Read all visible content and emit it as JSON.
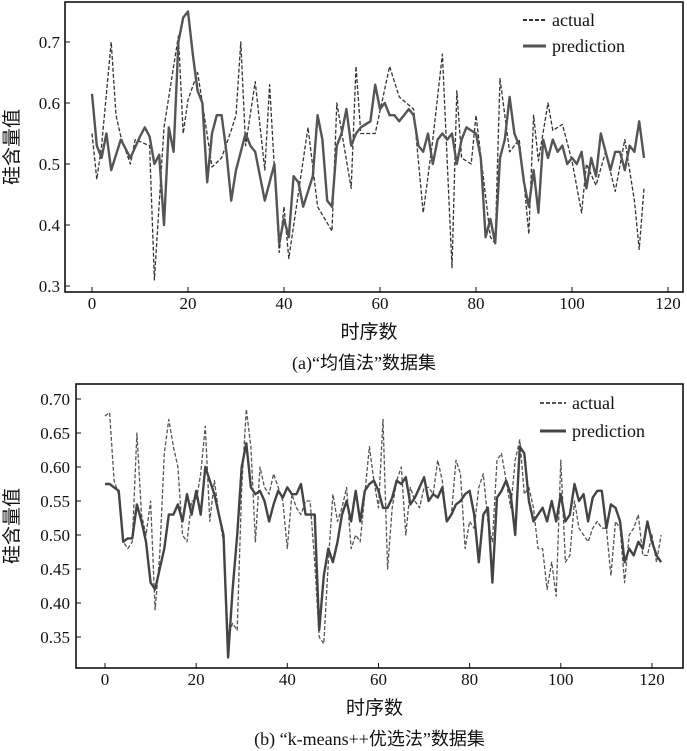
{
  "chart_data": [
    {
      "type": "line",
      "caption": "(a)“均值法”数据集",
      "xlabel": "时序数",
      "ylabel": "硅含量值",
      "xlim": [
        -5,
        125
      ],
      "ylim": [
        0.29,
        0.77
      ],
      "xticks": [
        0,
        20,
        40,
        60,
        80,
        100,
        120
      ],
      "yticks": [
        0.3,
        0.4,
        0.5,
        0.6,
        0.7
      ],
      "ytick_labels": [
        "0.3",
        "0.4",
        "0.5",
        "0.6",
        "0.7"
      ],
      "grid": false,
      "legend": "top-right",
      "series": [
        {
          "name": "actual",
          "style": "dashed",
          "color": "#333333",
          "points": [
            [
              0,
              0.55
            ],
            [
              1,
              0.475
            ],
            [
              2,
              0.53
            ],
            [
              4,
              0.7
            ],
            [
              5,
              0.58
            ],
            [
              6,
              0.545
            ],
            [
              8,
              0.5
            ],
            [
              9,
              0.54
            ],
            [
              12,
              0.53
            ],
            [
              13,
              0.31
            ],
            [
              15,
              0.56
            ],
            [
              18,
              0.71
            ],
            [
              19,
              0.55
            ],
            [
              20,
              0.605
            ],
            [
              22,
              0.65
            ],
            [
              23,
              0.6
            ],
            [
              25,
              0.495
            ],
            [
              27,
              0.51
            ],
            [
              29,
              0.555
            ],
            [
              30,
              0.58
            ],
            [
              31,
              0.7
            ],
            [
              32,
              0.53
            ],
            [
              34,
              0.635
            ],
            [
              36,
              0.49
            ],
            [
              37,
              0.63
            ],
            [
              39,
              0.355
            ],
            [
              40,
              0.43
            ],
            [
              41,
              0.345
            ],
            [
              45,
              0.56
            ],
            [
              47,
              0.43
            ],
            [
              50,
              0.39
            ],
            [
              51,
              0.6
            ],
            [
              54,
              0.46
            ],
            [
              55,
              0.66
            ],
            [
              56,
              0.55
            ],
            [
              59,
              0.55
            ],
            [
              62,
              0.66
            ],
            [
              64,
              0.61
            ],
            [
              67,
              0.59
            ],
            [
              69,
              0.42
            ],
            [
              71,
              0.54
            ],
            [
              73,
              0.68
            ],
            [
              75,
              0.33
            ],
            [
              76,
              0.62
            ],
            [
              77,
              0.51
            ],
            [
              79,
              0.5
            ],
            [
              80,
              0.58
            ],
            [
              83,
              0.38
            ],
            [
              84,
              0.37
            ],
            [
              85,
              0.64
            ],
            [
              87,
              0.52
            ],
            [
              89,
              0.54
            ],
            [
              90,
              0.47
            ],
            [
              91,
              0.385
            ],
            [
              92,
              0.58
            ],
            [
              93,
              0.505
            ],
            [
              95,
              0.6
            ],
            [
              96,
              0.555
            ],
            [
              98,
              0.565
            ],
            [
              100,
              0.505
            ],
            [
              102,
              0.42
            ],
            [
              103,
              0.5
            ],
            [
              105,
              0.465
            ],
            [
              107,
              0.52
            ],
            [
              109,
              0.455
            ],
            [
              111,
              0.54
            ],
            [
              113,
              0.44
            ],
            [
              114,
              0.36
            ],
            [
              115,
              0.46
            ]
          ]
        },
        {
          "name": "prediction",
          "style": "solid",
          "color": "#555555",
          "points": [
            [
              0,
              0.615
            ],
            [
              1,
              0.53
            ],
            [
              2,
              0.51
            ],
            [
              3,
              0.55
            ],
            [
              4,
              0.49
            ],
            [
              6,
              0.54
            ],
            [
              8,
              0.51
            ],
            [
              10,
              0.545
            ],
            [
              11,
              0.56
            ],
            [
              12,
              0.545
            ],
            [
              13,
              0.5
            ],
            [
              14,
              0.515
            ],
            [
              15,
              0.4
            ],
            [
              16,
              0.56
            ],
            [
              17,
              0.52
            ],
            [
              18,
              0.7
            ],
            [
              19,
              0.74
            ],
            [
              20,
              0.75
            ],
            [
              21,
              0.68
            ],
            [
              22,
              0.62
            ],
            [
              23,
              0.6
            ],
            [
              24,
              0.47
            ],
            [
              25,
              0.55
            ],
            [
              26,
              0.58
            ],
            [
              27,
              0.58
            ],
            [
              28,
              0.52
            ],
            [
              29,
              0.44
            ],
            [
              30,
              0.49
            ],
            [
              31,
              0.52
            ],
            [
              32,
              0.55
            ],
            [
              33,
              0.53
            ],
            [
              34,
              0.52
            ],
            [
              36,
              0.44
            ],
            [
              37,
              0.47
            ],
            [
              38,
              0.5
            ],
            [
              39,
              0.37
            ],
            [
              40,
              0.41
            ],
            [
              41,
              0.38
            ],
            [
              42,
              0.48
            ],
            [
              43,
              0.47
            ],
            [
              44,
              0.43
            ],
            [
              46,
              0.48
            ],
            [
              47,
              0.58
            ],
            [
              48,
              0.54
            ],
            [
              49,
              0.44
            ],
            [
              50,
              0.43
            ],
            [
              51,
              0.53
            ],
            [
              52,
              0.55
            ],
            [
              53,
              0.59
            ],
            [
              54,
              0.53
            ],
            [
              55,
              0.55
            ],
            [
              56,
              0.56
            ],
            [
              58,
              0.57
            ],
            [
              59,
              0.63
            ],
            [
              60,
              0.59
            ],
            [
              61,
              0.6
            ],
            [
              62,
              0.58
            ],
            [
              63,
              0.58
            ],
            [
              64,
              0.57
            ],
            [
              65,
              0.58
            ],
            [
              66,
              0.59
            ],
            [
              67,
              0.58
            ],
            [
              68,
              0.53
            ],
            [
              69,
              0.52
            ],
            [
              70,
              0.55
            ],
            [
              71,
              0.5
            ],
            [
              72,
              0.54
            ],
            [
              73,
              0.55
            ],
            [
              74,
              0.54
            ],
            [
              75,
              0.55
            ],
            [
              76,
              0.5
            ],
            [
              77,
              0.54
            ],
            [
              78,
              0.56
            ],
            [
              80,
              0.55
            ],
            [
              81,
              0.51
            ],
            [
              82,
              0.38
            ],
            [
              83,
              0.41
            ],
            [
              84,
              0.37
            ],
            [
              85,
              0.51
            ],
            [
              86,
              0.54
            ],
            [
              87,
              0.61
            ],
            [
              88,
              0.55
            ],
            [
              89,
              0.53
            ],
            [
              90,
              0.47
            ],
            [
              91,
              0.43
            ],
            [
              92,
              0.49
            ],
            [
              93,
              0.42
            ],
            [
              94,
              0.54
            ],
            [
              95,
              0.51
            ],
            [
              96,
              0.54
            ],
            [
              97,
              0.52
            ],
            [
              98,
              0.53
            ],
            [
              99,
              0.5
            ],
            [
              100,
              0.51
            ],
            [
              101,
              0.5
            ],
            [
              102,
              0.52
            ],
            [
              103,
              0.46
            ],
            [
              104,
              0.51
            ],
            [
              105,
              0.48
            ],
            [
              106,
              0.55
            ],
            [
              107,
              0.52
            ],
            [
              108,
              0.49
            ],
            [
              109,
              0.52
            ],
            [
              110,
              0.52
            ],
            [
              111,
              0.49
            ],
            [
              112,
              0.53
            ],
            [
              113,
              0.52
            ],
            [
              114,
              0.57
            ],
            [
              115,
              0.51
            ]
          ]
        }
      ]
    },
    {
      "type": "line",
      "caption": "(b) “k-means++优选法”数据集",
      "xlabel": "时序数",
      "ylabel": "硅含量值",
      "xlim": [
        -6,
        126
      ],
      "ylim": [
        0.32,
        0.72
      ],
      "xticks": [
        0,
        20,
        40,
        60,
        80,
        100,
        120
      ],
      "yticks": [
        0.35,
        0.4,
        0.45,
        0.5,
        0.55,
        0.6,
        0.65,
        0.7
      ],
      "ytick_labels": [
        "0.35",
        "0.40",
        "0.45",
        "0.50",
        "0.55",
        "0.60",
        "0.65",
        "0.70"
      ],
      "grid": false,
      "legend": "top-right",
      "series": [
        {
          "name": "actual",
          "style": "dashed",
          "color": "#555555",
          "values": [
            0.675,
            0.68,
            0.58,
            0.56,
            0.49,
            0.48,
            0.49,
            0.65,
            0.53,
            0.5,
            0.55,
            0.39,
            0.47,
            0.62,
            0.67,
            0.63,
            0.6,
            0.5,
            0.49,
            0.55,
            0.55,
            0.59,
            0.66,
            0.52,
            0.58,
            0.53,
            0.49,
            0.35,
            0.37,
            0.36,
            0.57,
            0.685,
            0.63,
            0.49,
            0.6,
            0.57,
            0.56,
            0.59,
            0.57,
            0.55,
            0.48,
            0.56,
            0.54,
            0.53,
            0.55,
            0.55,
            0.46,
            0.35,
            0.34,
            0.46,
            0.56,
            0.52,
            0.54,
            0.57,
            0.48,
            0.5,
            0.49,
            0.56,
            0.63,
            0.58,
            0.54,
            0.67,
            0.45,
            0.54,
            0.58,
            0.6,
            0.5,
            0.57,
            0.55,
            0.54,
            0.57,
            0.57,
            0.56,
            0.61,
            0.58,
            0.52,
            0.53,
            0.61,
            0.59,
            0.48,
            0.52,
            0.51,
            0.57,
            0.59,
            0.52,
            0.49,
            0.61,
            0.62,
            0.58,
            0.54,
            0.61,
            0.64,
            0.56,
            0.57,
            0.54,
            0.48,
            0.48,
            0.42,
            0.46,
            0.41,
            0.61,
            0.46,
            0.47,
            0.55,
            0.51,
            0.5,
            0.49,
            0.51,
            0.52,
            0.51,
            0.51,
            0.44,
            0.52,
            0.51,
            0.43,
            0.5,
            0.51,
            0.53,
            0.47,
            0.47,
            0.5,
            0.46,
            0.5
          ]
        },
        {
          "name": "prediction",
          "style": "solid",
          "color": "#444444",
          "values": [
            0.575,
            0.575,
            0.57,
            0.565,
            0.49,
            0.495,
            0.495,
            0.545,
            0.52,
            0.49,
            0.43,
            0.42,
            0.45,
            0.48,
            0.53,
            0.53,
            0.545,
            0.52,
            0.56,
            0.53,
            0.565,
            0.53,
            0.6,
            0.58,
            0.56,
            0.53,
            0.5,
            0.32,
            0.42,
            0.5,
            0.6,
            0.635,
            0.57,
            0.56,
            0.565,
            0.55,
            0.52,
            0.545,
            0.565,
            0.555,
            0.57,
            0.56,
            0.56,
            0.575,
            0.53,
            0.53,
            0.53,
            0.36,
            0.44,
            0.48,
            0.46,
            0.49,
            0.53,
            0.55,
            0.52,
            0.565,
            0.52,
            0.565,
            0.575,
            0.58,
            0.565,
            0.54,
            0.54,
            0.555,
            0.58,
            0.575,
            0.585,
            0.545,
            0.555,
            0.57,
            0.585,
            0.55,
            0.56,
            0.555,
            0.57,
            0.52,
            0.53,
            0.545,
            0.55,
            0.56,
            0.565,
            0.53,
            0.46,
            0.53,
            0.54,
            0.43,
            0.555,
            0.565,
            0.58,
            0.56,
            0.5,
            0.63,
            0.62,
            0.55,
            0.52,
            0.53,
            0.54,
            0.52,
            0.55,
            0.52,
            0.56,
            0.52,
            0.53,
            0.575,
            0.55,
            0.56,
            0.52,
            0.555,
            0.565,
            0.565,
            0.51,
            0.545,
            0.54,
            0.52,
            0.46,
            0.48,
            0.47,
            0.49,
            0.48,
            0.52,
            0.49,
            0.47,
            0.46
          ]
        }
      ]
    }
  ]
}
